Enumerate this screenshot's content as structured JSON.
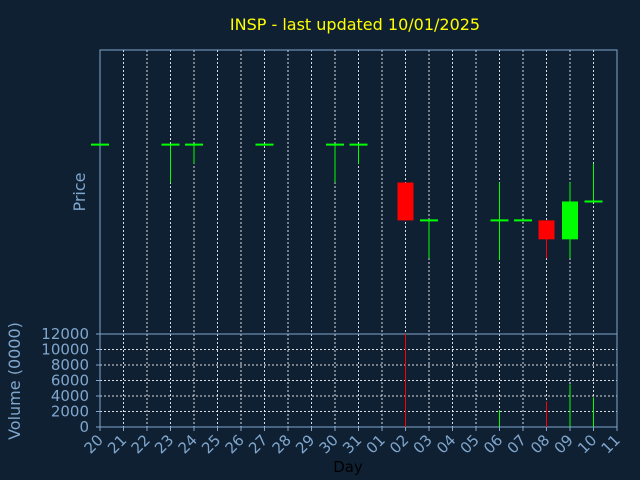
{
  "chart_data": [
    {
      "type": "candlestick",
      "title": "INSP - last updated 10/01/2025",
      "ylabel": "Price",
      "grid": true,
      "colors": {
        "up": "#00ff00",
        "down": "#ff0000",
        "neutral": "#00ff00"
      },
      "candles": [
        {
          "day": "20",
          "open": 10.0,
          "high": 10.0,
          "low": 10.0,
          "close": 10.0
        },
        {
          "day": "23",
          "open": 10.0,
          "high": 10.0,
          "low": 8.0,
          "close": 10.0
        },
        {
          "day": "24",
          "open": 10.0,
          "high": 10.0,
          "low": 9.0,
          "close": 10.0
        },
        {
          "day": "27",
          "open": 10.0,
          "high": 10.0,
          "low": 10.0,
          "close": 10.0
        },
        {
          "day": "30",
          "open": 10.0,
          "high": 10.0,
          "low": 8.0,
          "close": 10.0
        },
        {
          "day": "31",
          "open": 10.0,
          "high": 10.0,
          "low": 9.0,
          "close": 10.0
        },
        {
          "day": "02",
          "open": 8.0,
          "high": 8.0,
          "low": 6.0,
          "close": 6.0
        },
        {
          "day": "03",
          "open": 6.0,
          "high": 6.0,
          "low": 4.0,
          "close": 6.0
        },
        {
          "day": "06",
          "open": 6.0,
          "high": 8.0,
          "low": 3.9,
          "close": 6.0
        },
        {
          "day": "07",
          "open": 6.0,
          "high": 6.0,
          "low": 6.0,
          "close": 6.0
        },
        {
          "day": "08",
          "open": 6.0,
          "high": 6.0,
          "low": 4.0,
          "close": 5.0
        },
        {
          "day": "09",
          "open": 5.0,
          "high": 8.0,
          "low": 4.0,
          "close": 7.0
        },
        {
          "day": "10",
          "open": 7.0,
          "high": 9.0,
          "low": 7.0,
          "close": 7.0
        }
      ]
    },
    {
      "type": "bar",
      "xlabel": "Day",
      "ylabel": "Volume (0000)",
      "ylim": [
        0,
        12000
      ],
      "yticks": [
        0,
        2000,
        4000,
        6000,
        8000,
        10000,
        12000
      ],
      "categories": [
        "20",
        "21",
        "22",
        "23",
        "24",
        "25",
        "26",
        "27",
        "28",
        "29",
        "30",
        "31",
        "01",
        "02",
        "03",
        "04",
        "05",
        "06",
        "07",
        "08",
        "09",
        "10",
        "11"
      ],
      "values": [
        0,
        0,
        0,
        0,
        0,
        0,
        0,
        0,
        0,
        0,
        0,
        0,
        0,
        12000,
        0,
        0,
        0,
        2200,
        0,
        3300,
        5500,
        3800,
        0
      ],
      "bar_colors": [
        "#00ff00",
        "#00ff00",
        "#00ff00",
        "#00ff00",
        "#00ff00",
        "#00ff00",
        "#00ff00",
        "#00ff00",
        "#00ff00",
        "#00ff00",
        "#00ff00",
        "#00ff00",
        "#00ff00",
        "#ff0000",
        "#00ff00",
        "#00ff00",
        "#00ff00",
        "#00ff00",
        "#00ff00",
        "#ff0000",
        "#00ff00",
        "#00ff00",
        "#00ff00"
      ]
    }
  ]
}
